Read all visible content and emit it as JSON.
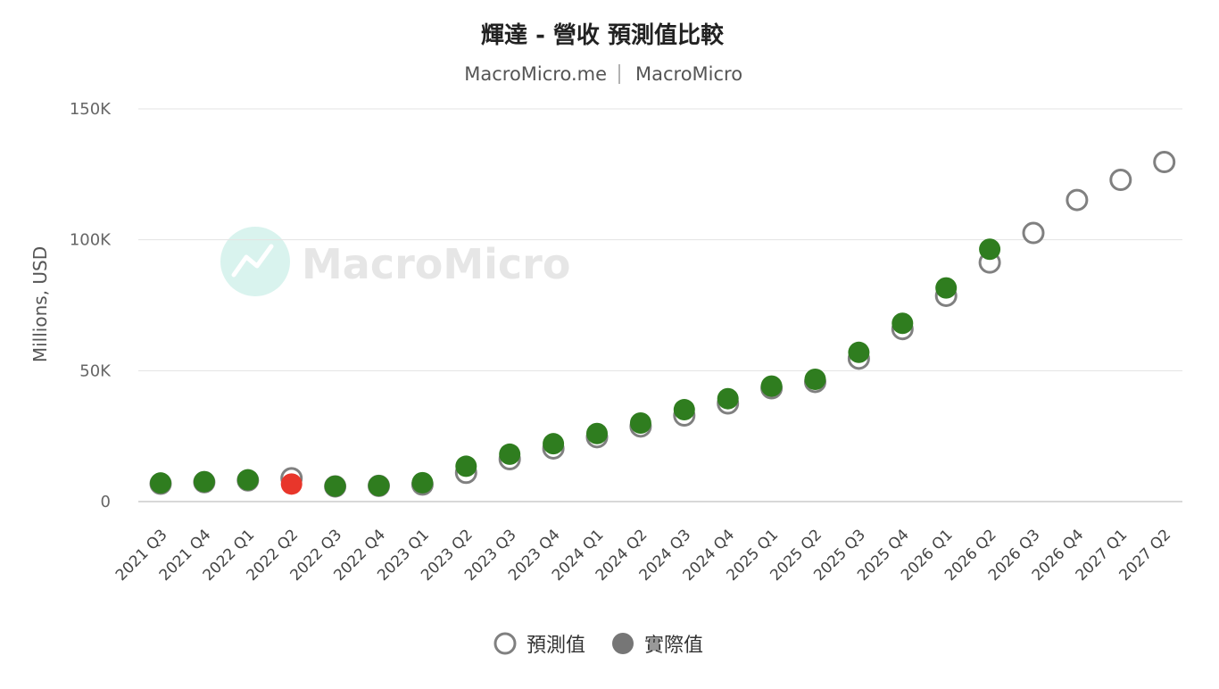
{
  "chart_data": {
    "type": "scatter",
    "title": "輝達 - 營收 預測值比較",
    "subtitle_left": "MacroMicro.me",
    "subtitle_right": "MacroMicro",
    "watermark": "MacroMicro",
    "ylabel": "Millions, USD",
    "xlabel": "",
    "ylim": [
      0,
      150000
    ],
    "yticks": [
      {
        "value": 0,
        "label": "0"
      },
      {
        "value": 50000,
        "label": "50K"
      },
      {
        "value": 100000,
        "label": "100K"
      },
      {
        "value": 150000,
        "label": "150K"
      }
    ],
    "grid": true,
    "legend_position": "bottom-center",
    "categories": [
      "2021 Q3",
      "2021 Q4",
      "2022 Q1",
      "2022 Q2",
      "2022 Q3",
      "2022 Q4",
      "2023 Q1",
      "2023 Q2",
      "2023 Q3",
      "2023 Q4",
      "2024 Q1",
      "2024 Q2",
      "2024 Q3",
      "2024 Q4",
      "2025 Q1",
      "2025 Q2",
      "2025 Q3",
      "2025 Q4",
      "2026 Q1",
      "2026 Q2",
      "2026 Q3",
      "2026 Q4",
      "2027 Q1",
      "2027 Q2"
    ],
    "series": [
      {
        "name": "預測值",
        "marker": "hollow-circle",
        "color": "#808080",
        "values": [
          6800,
          7400,
          8100,
          8900,
          5800,
          6000,
          6500,
          11000,
          16200,
          20300,
          24600,
          28700,
          32900,
          37500,
          43300,
          45700,
          54600,
          65900,
          78600,
          91300,
          102600,
          115200,
          122900,
          129700
        ]
      },
      {
        "name": "實際值",
        "marker": "filled-circle",
        "color": "#767676",
        "point_color": "#2f7d1f",
        "highlight_color": "#e8362b",
        "highlight_index": 3,
        "values": [
          7100,
          7600,
          8300,
          6700,
          5900,
          6100,
          7200,
          13500,
          18100,
          22100,
          26000,
          30000,
          35100,
          39300,
          44100,
          46700,
          57000,
          68100,
          81600,
          96400,
          null,
          null,
          null,
          null
        ]
      }
    ]
  }
}
